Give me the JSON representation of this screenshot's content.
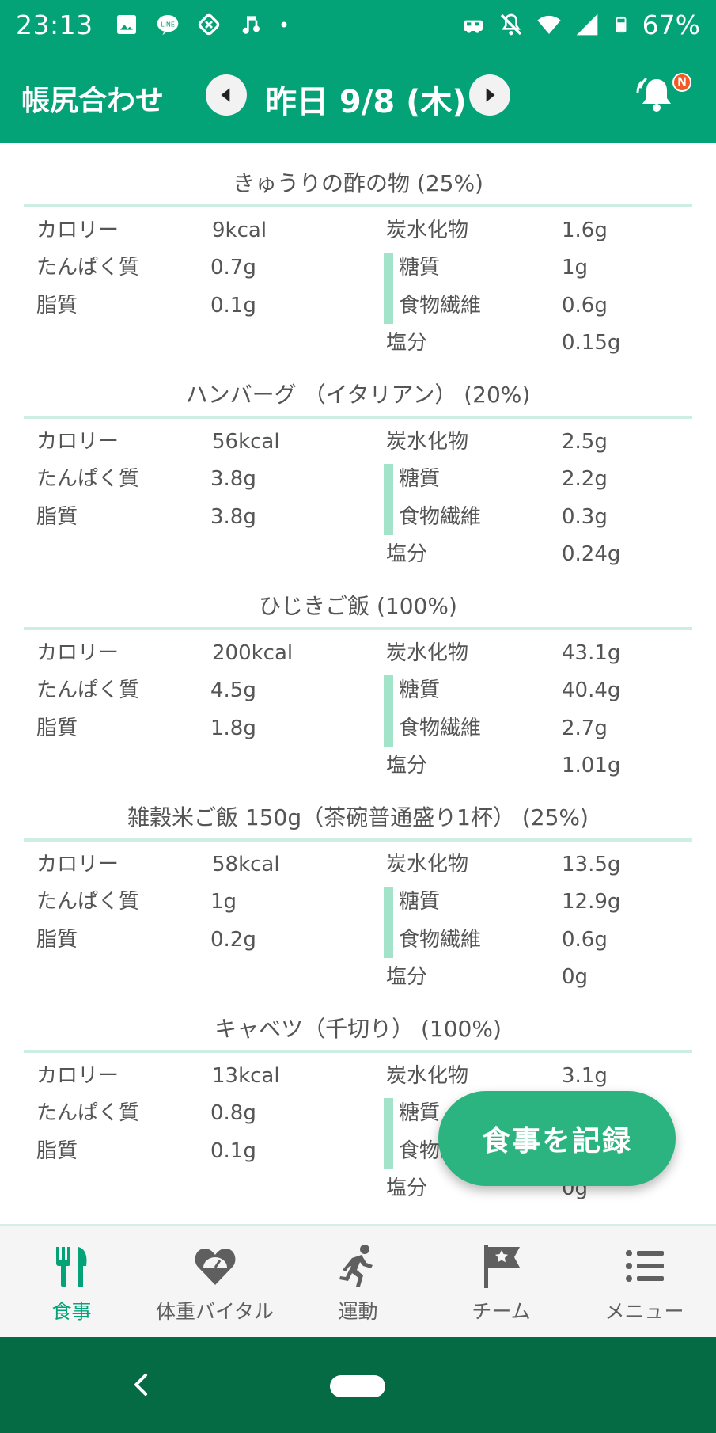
{
  "status_bar": {
    "time": "23:13",
    "battery": "67%",
    "left_icons": [
      "image-icon",
      "line-icon",
      "sync-icon",
      "music-icon",
      "dot-icon"
    ],
    "right_icons": [
      "vpn-icon",
      "mute-icon",
      "wifi-icon",
      "signal-icon",
      "battery-icon"
    ]
  },
  "app_bar": {
    "title": "帳尻合わせ",
    "date": "昨日 9/8 (木)",
    "badge": "N"
  },
  "nutrient_labels": {
    "calories": "カロリー",
    "protein": "たんぱく質",
    "fat": "脂質",
    "carbs": "炭水化物",
    "sugar": "糖質",
    "fiber": "食物繊維",
    "salt": "塩分"
  },
  "foods": [
    {
      "name": "きゅうりの酢の物 (25%)",
      "calories": "9kcal",
      "protein": "0.7g",
      "fat": "0.1g",
      "carbs": "1.6g",
      "sugar": "1g",
      "fiber": "0.6g",
      "salt": "0.15g"
    },
    {
      "name": "ハンバーグ （イタリアン） (20%)",
      "calories": "56kcal",
      "protein": "3.8g",
      "fat": "3.8g",
      "carbs": "2.5g",
      "sugar": "2.2g",
      "fiber": "0.3g",
      "salt": "0.24g"
    },
    {
      "name": "ひじきご飯 (100%)",
      "calories": "200kcal",
      "protein": "4.5g",
      "fat": "1.8g",
      "carbs": "43.1g",
      "sugar": "40.4g",
      "fiber": "2.7g",
      "salt": "1.01g"
    },
    {
      "name": "雑穀米ご飯 150g（茶碗普通盛り1杯） (25%)",
      "calories": "58kcal",
      "protein": "1g",
      "fat": "0.2g",
      "carbs": "13.5g",
      "sugar": "12.9g",
      "fiber": "0.6g",
      "salt": "0g"
    },
    {
      "name": "キャベツ（千切り） (100%)",
      "calories": "13kcal",
      "protein": "0.8g",
      "fat": "0.1g",
      "carbs": "3.1g",
      "sugar": "",
      "fiber": "",
      "salt": "0g"
    }
  ],
  "fab": {
    "label": "食事を記録"
  },
  "tabs": [
    {
      "label": "食事",
      "icon": "fork-knife-icon",
      "active": true
    },
    {
      "label": "体重バイタル",
      "icon": "heart-scale-icon",
      "active": false
    },
    {
      "label": "運動",
      "icon": "runner-icon",
      "active": false
    },
    {
      "label": "チーム",
      "icon": "flag-icon",
      "active": false
    },
    {
      "label": "メニュー",
      "icon": "menu-list-icon",
      "active": false
    }
  ],
  "colors": {
    "primary": "#04a277",
    "accent_bar": "#a3e3c9",
    "fab": "#2bb47f",
    "nav": "#056b44"
  }
}
